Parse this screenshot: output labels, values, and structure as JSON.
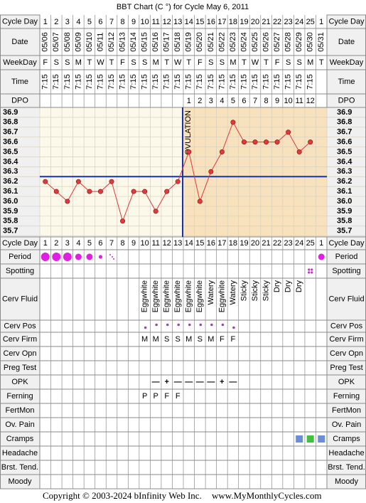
{
  "chart_data": {
    "type": "line",
    "title": "BBT Chart (C °) for Cycle May 6, 2011",
    "labels": {
      "cycle_day": "Cycle Day",
      "date": "Date",
      "weekday": "WeekDay",
      "time": "Time",
      "dpo": "DPO",
      "period": "Period",
      "spotting": "Spotting",
      "cerv_fluid": "Cerv Fluid",
      "cerv_pos": "Cerv Pos",
      "cerv_firm": "Cerv Firm",
      "cerv_opn": "Cerv Opn",
      "preg_test": "Preg Test",
      "opk": "OPK",
      "ferning": "Ferning",
      "fertmon": "FertMon",
      "ov_pain": "Ov. Pain",
      "cramps": "Cramps",
      "headache": "Headache",
      "brst_tend": "Brst. Tend.",
      "moody": "Moody"
    },
    "cycle_day": [
      1,
      2,
      3,
      4,
      5,
      6,
      7,
      8,
      9,
      10,
      11,
      12,
      13,
      14,
      15,
      16,
      17,
      18,
      19,
      20,
      21,
      22,
      23,
      24,
      25,
      1
    ],
    "dates": [
      "05/06",
      "05/07",
      "05/08",
      "05/09",
      "05/10",
      "05/11",
      "05/12",
      "05/13",
      "05/14",
      "05/15",
      "05/16",
      "05/17",
      "05/18",
      "05/19",
      "05/20",
      "05/21",
      "05/22",
      "05/23",
      "05/24",
      "05/25",
      "05/26",
      "05/27",
      "05/28",
      "05/29",
      "05/30",
      "05/31"
    ],
    "weekdays": [
      "F",
      "S",
      "S",
      "M",
      "T",
      "W",
      "T",
      "F",
      "S",
      "S",
      "M",
      "T",
      "W",
      "T",
      "F",
      "S",
      "S",
      "M",
      "T",
      "W",
      "T",
      "F",
      "S",
      "S",
      "M",
      "T"
    ],
    "times": [
      "7:15",
      "7:15",
      "7:15",
      "7:15",
      "7:15",
      "7:15",
      "7:15",
      "7:15",
      "7:15",
      "7:15",
      "7:15",
      "7:15",
      "7:15",
      "7:15",
      "7:15",
      "7:15",
      "7:15",
      "7:15",
      "7:15",
      "7:15",
      "7:15",
      "7:15",
      "7:15",
      "7:15",
      "7:15",
      null
    ],
    "dpo": [
      null,
      null,
      null,
      null,
      null,
      null,
      null,
      null,
      null,
      null,
      null,
      null,
      null,
      1,
      2,
      3,
      4,
      5,
      6,
      7,
      8,
      9,
      10,
      11,
      12,
      null
    ],
    "values": [
      36.2,
      36.1,
      36.0,
      36.2,
      36.1,
      36.1,
      36.2,
      35.8,
      36.1,
      36.1,
      35.9,
      36.1,
      36.2,
      36.5,
      36.0,
      36.3,
      36.5,
      36.8,
      36.6,
      36.6,
      36.6,
      36.6,
      36.7,
      36.5,
      36.6,
      null
    ],
    "color": "#e03a3a",
    "ylim": [
      35.64,
      36.95
    ],
    "yticks": [
      36.9,
      36.8,
      36.7,
      36.6,
      36.5,
      36.4,
      36.3,
      36.2,
      36.1,
      {
        "value": 36,
        "label": "36.0"
      },
      35.9,
      35.8,
      35.7
    ],
    "coverline": 36.25,
    "line_color": "#1a33a8",
    "ovulation_label": "OVULATION",
    "period": [
      "heavy",
      "heavy",
      "heavy",
      "medium",
      "medium",
      "light",
      "spotting",
      null,
      null,
      null,
      null,
      null,
      null,
      null,
      null,
      null,
      null,
      null,
      null,
      null,
      null,
      null,
      null,
      null,
      null,
      "medium"
    ],
    "period_color": "#e020e0",
    "spotting": [
      null,
      null,
      null,
      null,
      null,
      null,
      null,
      null,
      null,
      null,
      null,
      null,
      null,
      null,
      null,
      null,
      null,
      null,
      null,
      null,
      null,
      null,
      null,
      null,
      "spotting",
      null
    ],
    "cerv_fluid": [
      null,
      null,
      null,
      null,
      null,
      null,
      null,
      null,
      null,
      "Eggwhite",
      "Eggwhite",
      "Eggwhite",
      "Eggwhite",
      "Eggwhite",
      "Eggwhite",
      "Watery",
      "Eggwhite",
      "Watery",
      "Sticky",
      "Sticky",
      "Sticky",
      "Dry",
      "Dry",
      "Dry",
      null,
      null
    ],
    "cerv_pos": [
      null,
      null,
      null,
      null,
      null,
      null,
      null,
      null,
      null,
      "low",
      "high",
      "high",
      "high",
      "high",
      "high",
      "high",
      "high",
      "low",
      null,
      null,
      null,
      null,
      null,
      null,
      null,
      null
    ],
    "cerv_firm": [
      null,
      null,
      null,
      null,
      null,
      null,
      null,
      null,
      null,
      "M",
      "M",
      "S",
      "S",
      "M",
      "S",
      "M",
      "F",
      "F",
      null,
      null,
      null,
      null,
      null,
      null,
      null,
      null
    ],
    "opk": [
      null,
      null,
      null,
      null,
      null,
      null,
      null,
      null,
      null,
      null,
      "—",
      "+",
      "—",
      "—",
      "—",
      "—",
      "+",
      "—",
      null,
      null,
      null,
      null,
      null,
      null,
      null,
      null
    ],
    "ferning": [
      null,
      null,
      null,
      null,
      null,
      null,
      null,
      null,
      null,
      "P",
      "P",
      "F",
      "F",
      null,
      null,
      null,
      null,
      null,
      null,
      null,
      null,
      null,
      null,
      null,
      null,
      null
    ],
    "cramps": [
      null,
      null,
      null,
      null,
      null,
      null,
      null,
      null,
      null,
      null,
      null,
      null,
      null,
      null,
      null,
      null,
      null,
      null,
      null,
      null,
      null,
      null,
      null,
      "#6b8fd6",
      "#3fc23f",
      "#6b8fd6"
    ],
    "copyright": "Copyright © 2003-2024 bInfinity Web Inc.",
    "site": "www.MyMonthlyCycles.com"
  }
}
